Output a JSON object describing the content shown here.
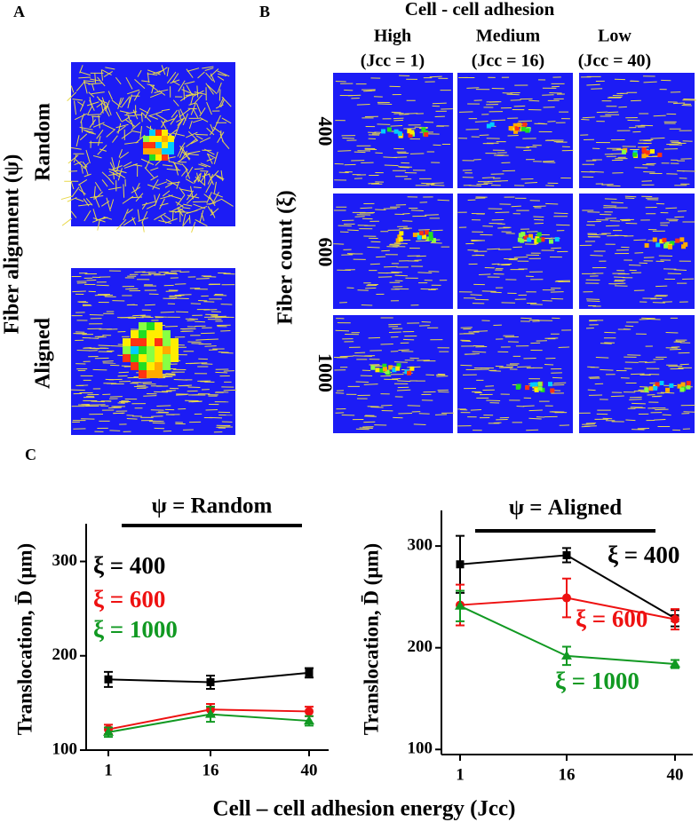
{
  "panel_labels": [
    "A",
    "B",
    "C"
  ],
  "panel_a": {
    "y_label": "Fiber alignment (ψ)",
    "rows": [
      "Random",
      "Aligned"
    ]
  },
  "panel_b": {
    "title": "Cell - cell adhesion",
    "columns": [
      {
        "name": "High",
        "detail": "(Jcc = 1)"
      },
      {
        "name": "Medium",
        "detail": "(Jcc = 16)"
      },
      {
        "name": "Low",
        "detail": "(Jcc = 40)"
      }
    ],
    "y_label": "Fiber count (ξ)",
    "rows": [
      "400",
      "600",
      "1000"
    ]
  },
  "x_label": "Cell – cell adhesion energy (Jcc)",
  "chart_data": [
    {
      "type": "line",
      "title": "ψ = Random",
      "y_label": "Translocation, D̄  (μm)",
      "categories": [
        "1",
        "16",
        "40"
      ],
      "ylim": [
        100,
        340
      ],
      "yticks": [
        100,
        200,
        300
      ],
      "legend": "upper left",
      "series": [
        {
          "name": "ξ = 400",
          "color": "#000000",
          "marker": "square",
          "values": [
            175,
            172,
            182
          ],
          "errors": [
            8,
            7,
            5
          ]
        },
        {
          "name": "ξ = 600",
          "color": "#ee1111",
          "marker": "circle",
          "values": [
            122,
            143,
            141
          ],
          "errors": [
            5,
            6,
            5
          ]
        },
        {
          "name": "ξ = 1000",
          "color": "#119922",
          "marker": "triangle",
          "values": [
            119,
            138,
            131
          ],
          "errors": [
            5,
            8,
            5
          ]
        }
      ]
    },
    {
      "type": "line",
      "title": "ψ = Aligned",
      "y_label": "Translocation, D̄  (μm)",
      "categories": [
        "1",
        "16",
        "40"
      ],
      "ylim": [
        95,
        335
      ],
      "yticks": [
        100,
        200,
        300
      ],
      "legend": "inline",
      "series": [
        {
          "name": "ξ = 400",
          "color": "#000000",
          "marker": "square",
          "values": [
            282,
            291,
            229
          ],
          "errors": [
            28,
            7,
            8
          ]
        },
        {
          "name": "ξ = 600",
          "color": "#ee1111",
          "marker": "circle",
          "values": [
            242,
            249,
            228
          ],
          "errors": [
            20,
            19,
            10
          ]
        },
        {
          "name": "ξ = 1000",
          "color": "#119922",
          "marker": "triangle",
          "values": [
            241,
            192,
            184
          ],
          "errors": [
            15,
            9,
            4
          ]
        }
      ]
    }
  ]
}
